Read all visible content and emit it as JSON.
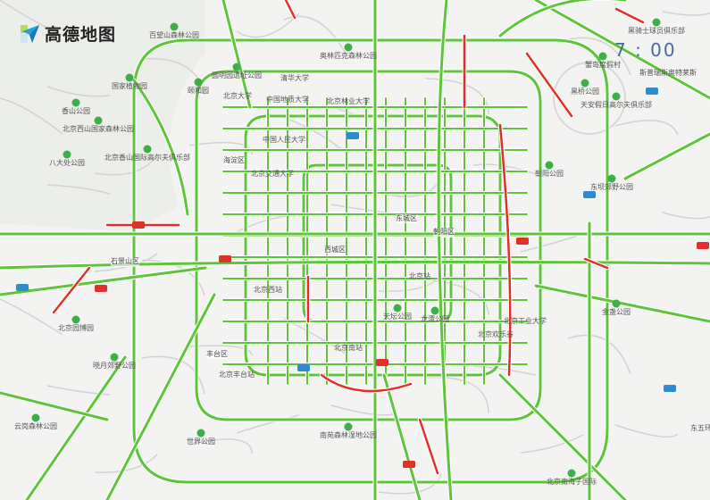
{
  "brand": {
    "name": "高德地图"
  },
  "clock": {
    "time": "7 : 00"
  },
  "colors": {
    "smooth": "#5fc43c",
    "congested": "#e0302a",
    "background": "#f3f4f2",
    "park": "#3fae49",
    "highway_sign": "#2e8bd0"
  },
  "labels": [
    {
      "text": "百望山森林公园",
      "type": "park"
    },
    {
      "text": "国家植物园",
      "type": "park"
    },
    {
      "text": "香山公园",
      "type": "park"
    },
    {
      "text": "北京西山国家森林公园",
      "type": "park"
    },
    {
      "text": "八大处公园",
      "type": "park"
    },
    {
      "text": "北京香山国际高尔夫俱乐部",
      "type": "park"
    },
    {
      "text": "颐和园",
      "type": "park"
    },
    {
      "text": "圆明园遗址公园",
      "type": "park"
    },
    {
      "text": "清华大学",
      "type": "poi"
    },
    {
      "text": "北京大学",
      "type": "poi"
    },
    {
      "text": "中国地质大学",
      "type": "poi"
    },
    {
      "text": "北京林业大学",
      "type": "poi"
    },
    {
      "text": "中国人民大学",
      "type": "poi"
    },
    {
      "text": "北京交通大学",
      "type": "poi"
    },
    {
      "text": "奥林匹克森林公园",
      "type": "park"
    },
    {
      "text": "海淀区",
      "type": "district"
    },
    {
      "text": "西城区",
      "type": "district"
    },
    {
      "text": "东城区",
      "type": "district"
    },
    {
      "text": "朝阳区",
      "type": "district"
    },
    {
      "text": "石景山区",
      "type": "district"
    },
    {
      "text": "丰台区",
      "type": "district"
    },
    {
      "text": "北京西站",
      "type": "poi"
    },
    {
      "text": "北京站",
      "type": "poi"
    },
    {
      "text": "北京南站",
      "type": "poi"
    },
    {
      "text": "天坛公园",
      "type": "park"
    },
    {
      "text": "龙潭公园",
      "type": "park"
    },
    {
      "text": "北京欢乐谷",
      "type": "poi"
    },
    {
      "text": "北京工业大学",
      "type": "poi"
    },
    {
      "text": "朝阳公园",
      "type": "park"
    },
    {
      "text": "东坝郊野公园",
      "type": "park"
    },
    {
      "text": "黑桥公园",
      "type": "park"
    },
    {
      "text": "天安假日高尔夫俱乐部",
      "type": "park"
    },
    {
      "text": "蟹岛度假村",
      "type": "park"
    },
    {
      "text": "黑骑士球员俱乐部",
      "type": "park"
    },
    {
      "text": "斯普瑞斯奥特莱斯",
      "type": "poi"
    },
    {
      "text": "北京园博园",
      "type": "park"
    },
    {
      "text": "晓月郊野公园",
      "type": "park"
    },
    {
      "text": "世界公园",
      "type": "park"
    },
    {
      "text": "北京丰台站",
      "type": "poi"
    },
    {
      "text": "南苑森林湿地公园",
      "type": "park"
    },
    {
      "text": "云岗森林公园",
      "type": "park"
    },
    {
      "text": "北京南海子国际",
      "type": "park"
    },
    {
      "text": "金盏公园",
      "type": "park"
    },
    {
      "text": "东五环",
      "type": "poi"
    }
  ]
}
